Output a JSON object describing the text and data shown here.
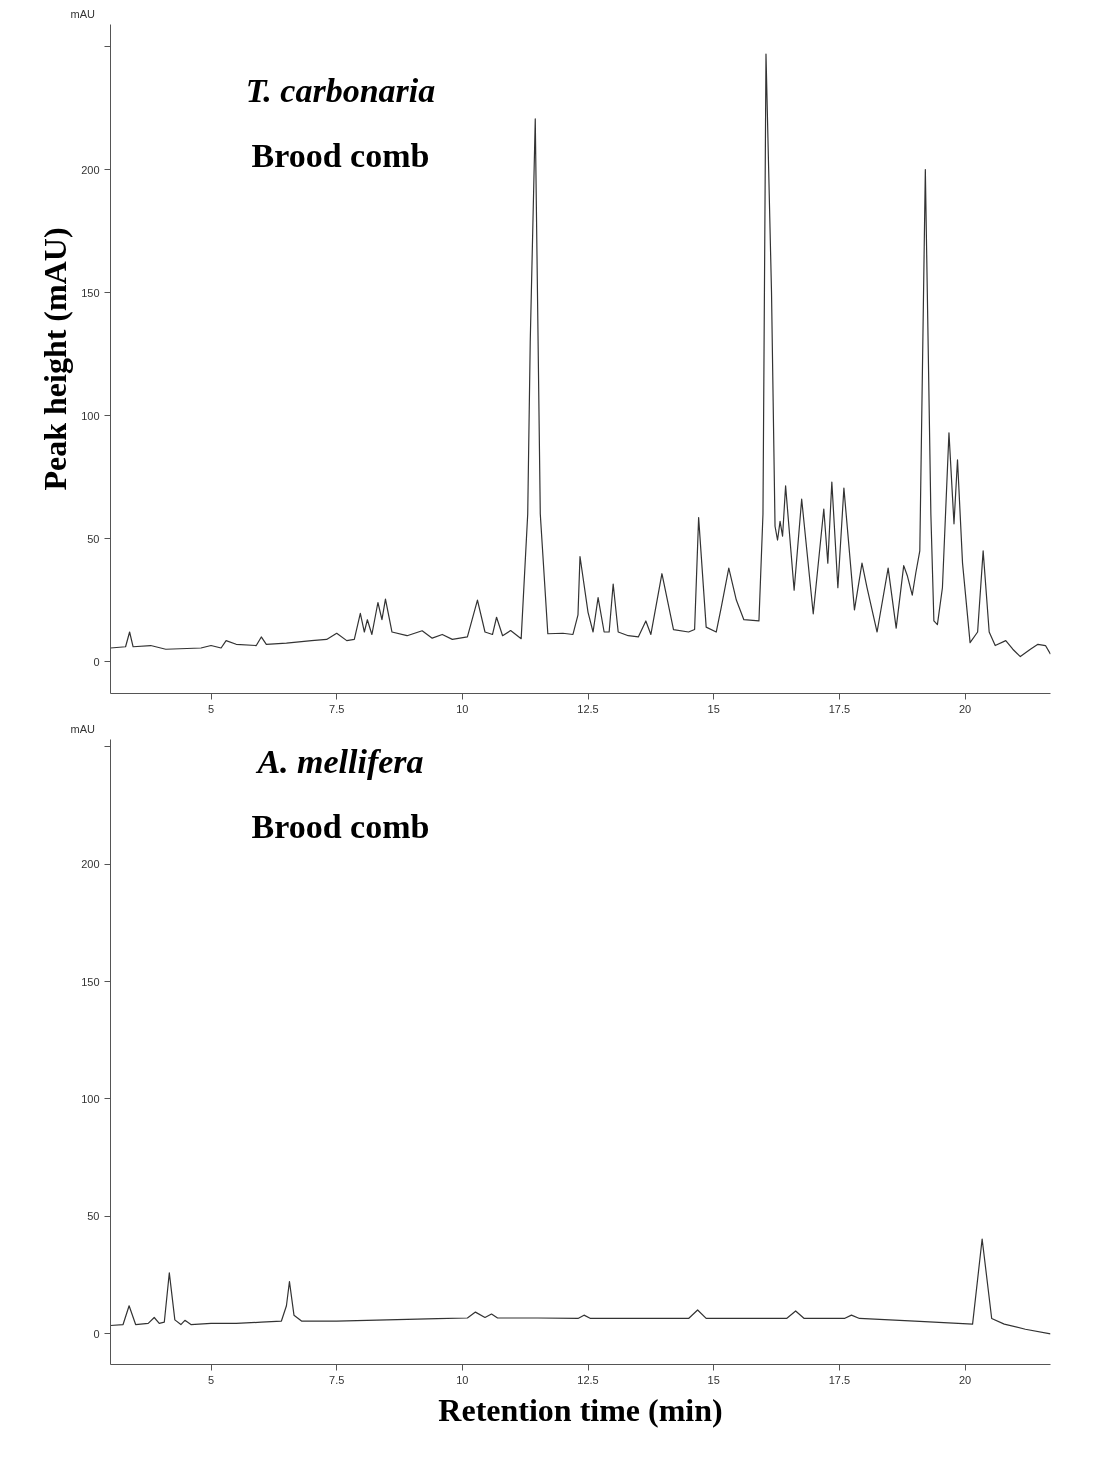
{
  "chart_data": [
    {
      "type": "line",
      "title": "T. carbonaria",
      "subtitle": "Brood comb",
      "ylabel": "Peak height (mAU)",
      "annotations": [
        "mAU"
      ],
      "xlim": [
        3.0,
        21.7
      ],
      "ylim": [
        -13,
        259
      ],
      "xticks": [
        5,
        7.5,
        10,
        12.5,
        15,
        17.5,
        20
      ],
      "yticks": [
        0,
        50,
        100,
        150,
        200,
        {
          "value": 250,
          "label": null
        }
      ],
      "grid": false,
      "series": [
        {
          "color": "#333333",
          "x": [
            3.0,
            3.3,
            3.38,
            3.45,
            3.8,
            4.1,
            4.8,
            5.0,
            5.2,
            5.3,
            5.5,
            5.9,
            6.0,
            6.1,
            6.5,
            7.0,
            7.3,
            7.5,
            7.7,
            7.85,
            7.97,
            8.05,
            8.11,
            8.2,
            8.32,
            8.4,
            8.47,
            8.6,
            8.9,
            9.2,
            9.4,
            9.6,
            9.8,
            10.1,
            10.3,
            10.45,
            10.6,
            10.68,
            10.8,
            10.96,
            11.17,
            11.3,
            11.35,
            11.45,
            11.55,
            11.7,
            12.0,
            12.2,
            12.3,
            12.34,
            12.5,
            12.6,
            12.7,
            12.82,
            12.92,
            13.0,
            13.1,
            13.3,
            13.5,
            13.65,
            13.75,
            13.97,
            14.2,
            14.5,
            14.62,
            14.7,
            14.85,
            15.05,
            15.15,
            15.3,
            15.45,
            15.6,
            15.9,
            15.98,
            16.04,
            16.15,
            16.22,
            16.27,
            16.32,
            16.37,
            16.43,
            16.6,
            16.75,
            16.98,
            17.19,
            17.27,
            17.35,
            17.47,
            17.59,
            17.8,
            17.95,
            18.05,
            18.25,
            18.47,
            18.63,
            18.78,
            18.85,
            18.95,
            19.02,
            19.1,
            19.21,
            19.32,
            19.38,
            19.45,
            19.55,
            19.68,
            19.78,
            19.85,
            19.95,
            20.1,
            20.25,
            20.36,
            20.48,
            20.6,
            20.81,
            20.95,
            21.1,
            21.3,
            21.45,
            21.6,
            21.7
          ],
          "values": [
            5.5,
            6,
            12,
            6,
            6.5,
            5,
            5.5,
            6.5,
            5.5,
            8.5,
            7,
            6.5,
            10,
            7,
            7.5,
            8.5,
            9,
            11.5,
            8.5,
            9,
            19.6,
            12,
            17,
            11,
            24,
            17,
            25.4,
            12,
            10.5,
            12.5,
            9.5,
            11,
            9,
            10,
            25,
            12,
            11,
            18,
            10.5,
            12.6,
            9.3,
            60,
            130,
            220.6,
            60,
            11.3,
            11.5,
            11,
            19,
            42.7,
            20,
            12,
            26,
            12,
            12,
            31.5,
            12,
            10.5,
            10,
            16.5,
            11,
            35.7,
            13,
            12,
            13,
            58.5,
            14,
            12,
            22,
            38,
            25,
            17,
            16.5,
            60,
            247,
            150,
            55,
            49.4,
            57,
            51,
            71.4,
            29,
            66,
            19.4,
            62,
            40,
            73,
            30,
            70.5,
            21,
            40,
            30,
            12,
            38,
            13.6,
            39,
            35,
            27,
            36,
            45,
            200,
            60,
            16.5,
            15,
            30,
            93,
            56,
            82,
            40,
            7.7,
            12,
            45,
            12,
            6.5,
            8.5,
            5,
            2,
            5,
            7,
            6.5,
            3
          ]
        }
      ]
    },
    {
      "type": "line",
      "title": "A. mellifera",
      "subtitle": "Brood comb",
      "xlabel": "Retention time (min)",
      "annotations": [
        "mAU"
      ],
      "xlim": [
        3.0,
        21.7
      ],
      "ylim": [
        -13,
        253
      ],
      "xticks": [
        5,
        7.5,
        10,
        12.5,
        15,
        17.5,
        20
      ],
      "yticks": [
        0,
        50,
        100,
        150,
        200,
        {
          "value": 250,
          "label": null
        }
      ],
      "grid": false,
      "series": [
        {
          "color": "#333333",
          "x": [
            3.0,
            3.25,
            3.37,
            3.5,
            3.75,
            3.87,
            3.97,
            4.07,
            4.17,
            4.28,
            4.4,
            4.48,
            4.6,
            5.0,
            5.5,
            6.0,
            6.4,
            6.5,
            6.56,
            6.65,
            6.8,
            7.5,
            8.5,
            9.5,
            10.1,
            10.26,
            10.45,
            10.58,
            10.7,
            11.5,
            12.3,
            12.42,
            12.55,
            14.5,
            14.68,
            14.85,
            16.45,
            16.63,
            16.8,
            17.6,
            17.74,
            17.9,
            19.0,
            20.15,
            20.34,
            20.53,
            20.78,
            21.2,
            21.7
          ],
          "values": [
            3.6,
            4,
            12,
            4,
            4.5,
            7,
            4.5,
            5,
            26,
            6,
            4,
            5.8,
            4,
            4.5,
            4.5,
            5,
            5.5,
            12,
            22.3,
            8,
            5.5,
            5.5,
            6,
            6.5,
            6.8,
            9.3,
            7,
            8.5,
            6.8,
            6.8,
            6.6,
            8,
            6.6,
            6.6,
            10.2,
            6.6,
            6.6,
            9.8,
            6.6,
            6.6,
            8,
            6.6,
            5.5,
            4.2,
            40.4,
            6.6,
            4.2,
            2,
            0
          ]
        }
      ]
    }
  ]
}
